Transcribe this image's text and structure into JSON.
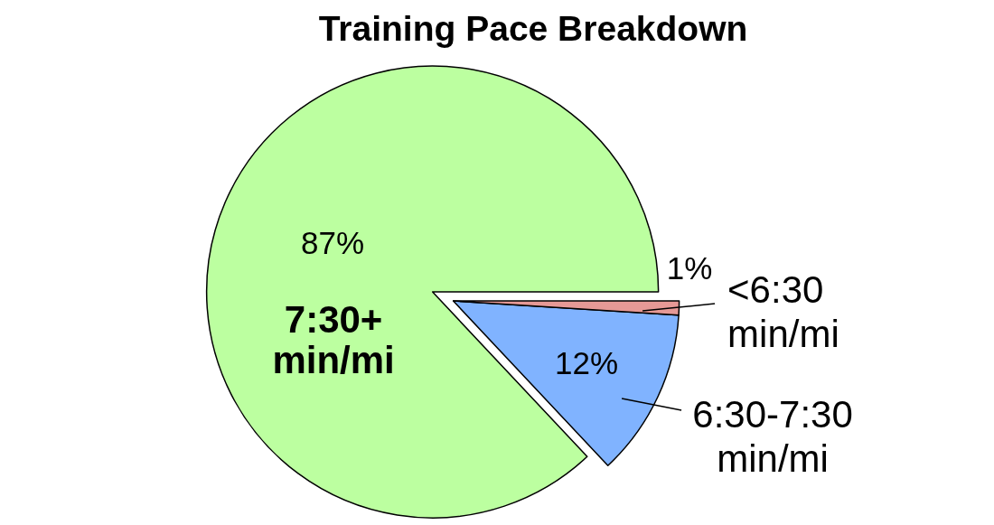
{
  "chart_data": {
    "type": "pie",
    "title": "Training Pace Breakdown",
    "categories": [
      "7:30+ min/mi",
      "6:30-7:30 min/mi",
      "<6:30 min/mi"
    ],
    "values": [
      87,
      12,
      1
    ],
    "value_labels": [
      "87%",
      "12%",
      "1%"
    ],
    "colors": [
      "#bcffa0",
      "#80b3ff",
      "#e69996"
    ]
  }
}
